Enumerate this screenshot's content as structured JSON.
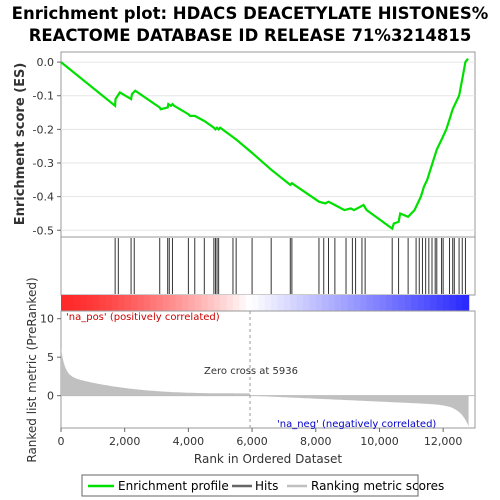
{
  "chart_data": {
    "title_line1": "Enrichment plot: HDACS DEACETYLATE HISTONES%",
    "title_line2": "REACTOME DATABASE ID RELEASE 71%3214815",
    "type": "line",
    "es_panel": {
      "ylabel": "Enrichment score (ES)",
      "ylim": [
        -0.52,
        0.03
      ],
      "yticks": [
        "0.0",
        "-0.1",
        "-0.2",
        "-0.3",
        "-0.4",
        "-0.5"
      ],
      "ytick_values": [
        0.0,
        -0.1,
        -0.2,
        -0.3,
        -0.4,
        -0.5
      ],
      "line_color": "#00e000",
      "series": [
        {
          "name": "Enrichment profile",
          "x": [
            0,
            1700,
            1710,
            1850,
            2200,
            2230,
            2330,
            3100,
            3130,
            3350,
            3370,
            3450,
            3500,
            3550,
            4000,
            4050,
            4200,
            4500,
            4800,
            4850,
            4900,
            4950,
            5000,
            5500,
            6000,
            6600,
            7200,
            7250,
            8100,
            8300,
            8400,
            8600,
            8900,
            9100,
            9200,
            9400,
            9500,
            9600,
            10400,
            10450,
            10600,
            10650,
            10900,
            11100,
            11200,
            11300,
            11400,
            11500,
            11600,
            11700,
            11800,
            11950,
            12100,
            12200,
            12300,
            12500,
            12600,
            12700,
            12780
          ],
          "y": [
            0.0,
            -0.13,
            -0.11,
            -0.09,
            -0.11,
            -0.095,
            -0.085,
            -0.135,
            -0.14,
            -0.135,
            -0.125,
            -0.13,
            -0.125,
            -0.13,
            -0.155,
            -0.16,
            -0.16,
            -0.175,
            -0.195,
            -0.2,
            -0.195,
            -0.2,
            -0.195,
            -0.23,
            -0.27,
            -0.32,
            -0.365,
            -0.36,
            -0.415,
            -0.42,
            -0.415,
            -0.425,
            -0.44,
            -0.435,
            -0.44,
            -0.43,
            -0.425,
            -0.44,
            -0.495,
            -0.48,
            -0.475,
            -0.45,
            -0.46,
            -0.44,
            -0.42,
            -0.4,
            -0.37,
            -0.35,
            -0.32,
            -0.29,
            -0.26,
            -0.23,
            -0.2,
            -0.17,
            -0.14,
            -0.1,
            -0.05,
            0.0,
            0.01
          ]
        }
      ]
    },
    "hits": {
      "positions": [
        1700,
        1800,
        2200,
        2300,
        3100,
        3350,
        3400,
        3500,
        4000,
        4200,
        4500,
        4800,
        4850,
        4900,
        4950,
        5400,
        5500,
        6000,
        6600,
        7200,
        7250,
        8100,
        8250,
        8400,
        8600,
        8950,
        9150,
        9250,
        9450,
        9550,
        10400,
        10600,
        10900,
        11150,
        11250,
        11350,
        11450,
        11550,
        11650,
        11750,
        11800,
        11950,
        12000,
        12200,
        12300,
        12350,
        12500,
        12600,
        12700
      ]
    },
    "heatmap": {
      "labels": [
        "'na_pos' (positively correlated)",
        "'na_neg' (negatively correlated)"
      ],
      "pos_color": "#ff0000",
      "neg_color": "#0000ff"
    },
    "rank_panel": {
      "ylabel": "Ranked list metric (PreRanked)",
      "ylim": [
        -4.2,
        11
      ],
      "yticks": [
        "10",
        "5",
        "0"
      ],
      "ytick_values": [
        10,
        5,
        0
      ],
      "zero_cross_label": "Zero cross at 5936",
      "zero_cross": 5936,
      "fill_color": "#c0c0c0"
    },
    "xaxis": {
      "xlabel": "Rank in Ordered Dataset",
      "xlim": [
        0,
        13000
      ],
      "xticks": [
        "0",
        "2,000",
        "4,000",
        "6,000",
        "8,000",
        "10,000",
        "12,000"
      ],
      "xtick_values": [
        0,
        2000,
        4000,
        6000,
        8000,
        10000,
        12000
      ],
      "n_genes": 12800
    },
    "legend": [
      {
        "label": "Enrichment profile",
        "color": "#00e000"
      },
      {
        "label": "Hits",
        "color": "#666666"
      },
      {
        "label": "Ranking metric scores",
        "color": "#c0c0c0"
      }
    ]
  }
}
